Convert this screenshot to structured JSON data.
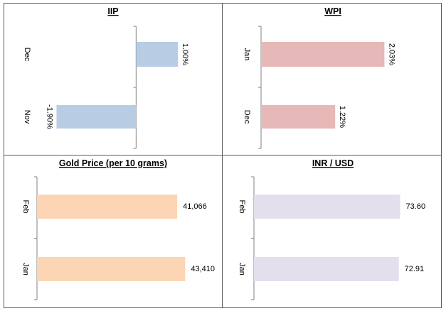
{
  "colors": {
    "border": "#595959",
    "axis": "#808080",
    "text": "#000000",
    "iip": "#b8cce4",
    "wpi": "#e6b8b7",
    "gold": "#fcd5b4",
    "inr": "#e4dfec"
  },
  "chart_data": [
    {
      "type": "bar",
      "orientation": "horizontal",
      "title": "IIP",
      "categories": [
        "Dec",
        "Nov"
      ],
      "values": [
        1.0,
        -1.9
      ],
      "value_labels": [
        "1.00%",
        "-1.90%"
      ],
      "color": "#b8cce4",
      "xlim": [
        -2.4,
        1.2
      ]
    },
    {
      "type": "bar",
      "orientation": "horizontal",
      "title": "WPI",
      "categories": [
        "Jan",
        "Dec"
      ],
      "values": [
        2.03,
        1.22
      ],
      "value_labels": [
        "2.03%",
        "1.22%"
      ],
      "color": "#e6b8b7",
      "xlim": [
        0,
        2.4
      ]
    },
    {
      "type": "bar",
      "orientation": "horizontal",
      "title": "Gold Price (per 10 grams)",
      "categories": [
        "Feb",
        "Jan"
      ],
      "values": [
        41066,
        43410
      ],
      "value_labels": [
        "41,066",
        "43,410"
      ],
      "color": "#fcd5b4",
      "xlim": [
        0,
        50000
      ]
    },
    {
      "type": "bar",
      "orientation": "horizontal",
      "title": "INR / USD",
      "categories": [
        "Feb",
        "Jan"
      ],
      "values": [
        73.6,
        72.91
      ],
      "value_labels": [
        "73.60",
        "72.91"
      ],
      "color": "#e4dfec",
      "xlim": [
        0,
        87
      ]
    }
  ]
}
